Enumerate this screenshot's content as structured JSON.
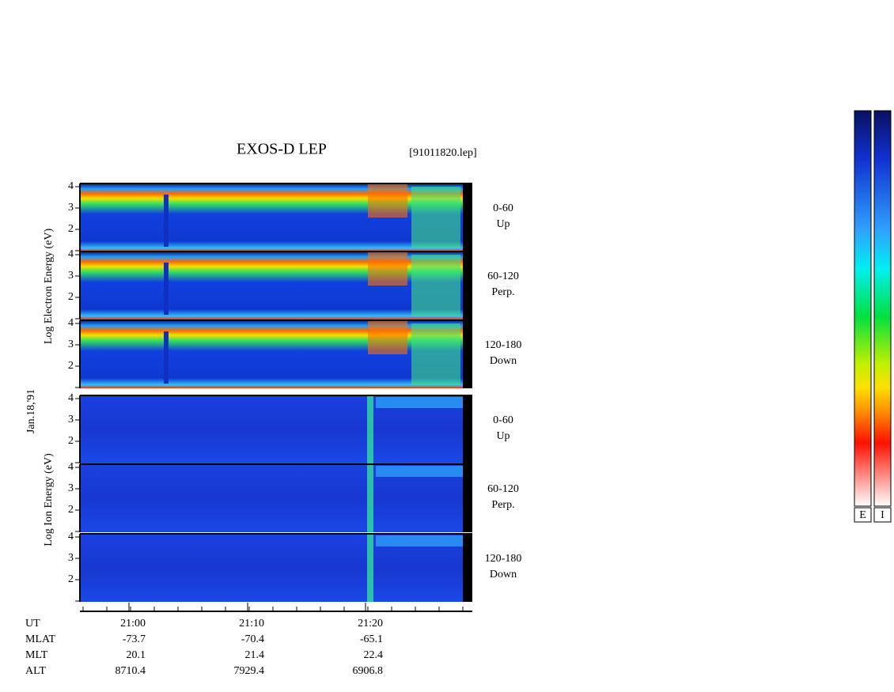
{
  "header": {
    "title": "EXOS-D LEP",
    "file": "[91011820.lep]"
  },
  "left_labels": {
    "electron": "Log Electron Energy (eV)",
    "date": "Jan.18,'91",
    "ion": "Log Ion Energy (eV)"
  },
  "panels": [
    {
      "range": "0-60",
      "direction": "Up",
      "yticks": [
        4,
        3,
        2
      ]
    },
    {
      "range": "60-120",
      "direction": "Perp.",
      "yticks": [
        4,
        3,
        2
      ]
    },
    {
      "range": "120-180",
      "direction": "Down",
      "yticks": [
        4,
        3,
        2
      ]
    },
    {
      "range": "0-60",
      "direction": "Up",
      "yticks": [
        4,
        3,
        2
      ]
    },
    {
      "range": "60-120",
      "direction": "Perp.",
      "yticks": [
        4,
        3,
        2
      ]
    },
    {
      "range": "120-180",
      "direction": "Down",
      "yticks": [
        4,
        3,
        2
      ]
    }
  ],
  "time_axis": [
    "21:00",
    "21:10",
    "21:20"
  ],
  "ephemeris": {
    "labels": [
      "UT",
      "MLAT",
      "MLT",
      "ALT"
    ],
    "rows": [
      [
        "-73.7",
        "-70.4",
        "-65.1"
      ],
      [
        "20.1",
        "21.4",
        "22.4"
      ],
      [
        "8710.4",
        "7929.4",
        "6906.8"
      ]
    ]
  },
  "colorbars": [
    "E",
    "I"
  ]
}
